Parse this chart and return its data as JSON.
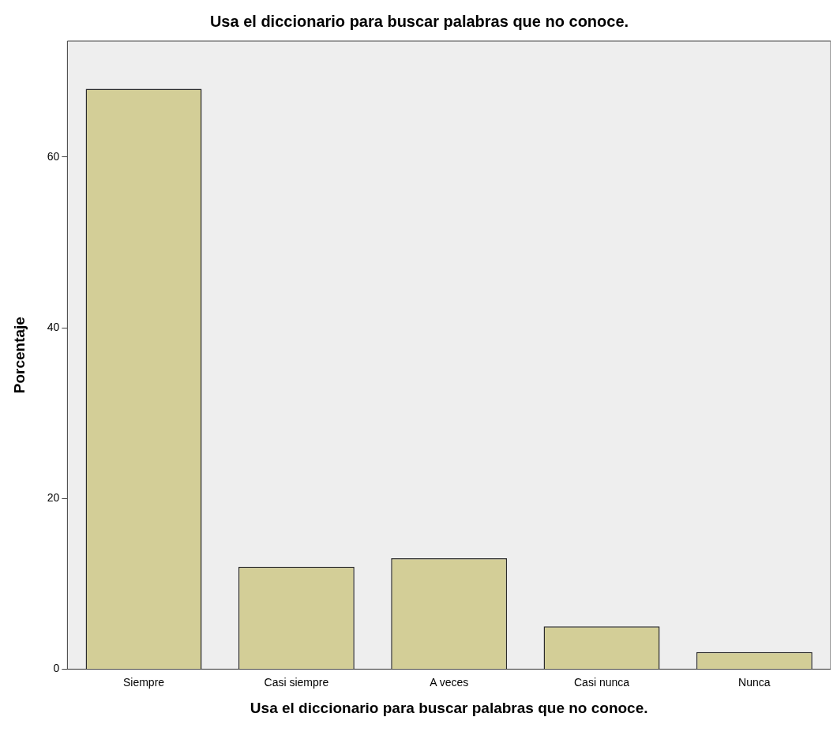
{
  "chart_data": {
    "type": "bar",
    "title": "Usa el diccionario para buscar palabras que no conoce.",
    "xlabel": "Usa el diccionario para buscar palabras que no conoce.",
    "ylabel": "Porcentaje",
    "categories": [
      "Siempre",
      "Casi siempre",
      "A veces",
      "Casi nunca",
      "Nunca"
    ],
    "values": [
      68,
      12,
      13,
      5,
      2
    ],
    "color": "#d3ce97",
    "ylim": [
      0,
      73.6
    ],
    "yticks": [
      0,
      20,
      40,
      60
    ],
    "grid": false,
    "legend": false
  }
}
